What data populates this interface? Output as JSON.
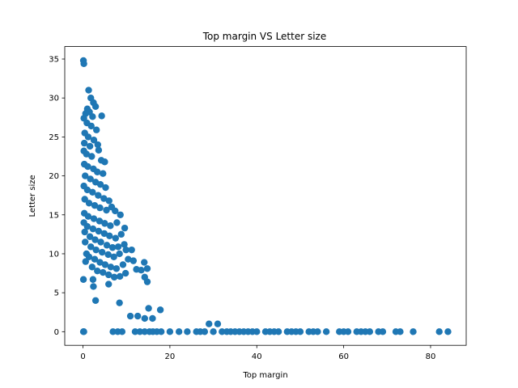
{
  "chart_data": {
    "type": "scatter",
    "title": "Top margin VS Letter size",
    "xlabel": "Top margin",
    "ylabel": "Letter size",
    "xlim": [
      -4.2,
      88.2
    ],
    "ylim": [
      -1.75,
      36.6
    ],
    "xticks": [
      0,
      20,
      40,
      60,
      80
    ],
    "yticks": [
      0,
      5,
      10,
      15,
      20,
      25,
      30,
      35
    ],
    "grid": false,
    "legend": "none",
    "color": "#1f77b4",
    "series": [
      {
        "points": [
          [
            0.1,
            34.8
          ],
          [
            0.2,
            34.4
          ],
          [
            1.3,
            31.0
          ],
          [
            1.8,
            30.0
          ],
          [
            2.4,
            29.4
          ],
          [
            1.0,
            28.6
          ],
          [
            0.6,
            28.0
          ],
          [
            0.2,
            27.4
          ],
          [
            1.5,
            28.2
          ],
          [
            2.2,
            27.6
          ],
          [
            2.9,
            28.9
          ],
          [
            4.3,
            27.7
          ],
          [
            0.9,
            26.8
          ],
          [
            1.9,
            26.4
          ],
          [
            3.1,
            25.9
          ],
          [
            0.4,
            25.5
          ],
          [
            1.2,
            25.0
          ],
          [
            2.5,
            24.6
          ],
          [
            0.3,
            24.2
          ],
          [
            1.6,
            23.8
          ],
          [
            3.4,
            24.0
          ],
          [
            0.2,
            23.2
          ],
          [
            0.8,
            22.8
          ],
          [
            2.0,
            22.5
          ],
          [
            3.6,
            23.3
          ],
          [
            4.2,
            22.0
          ],
          [
            5.0,
            21.8
          ],
          [
            0.3,
            21.5
          ],
          [
            1.1,
            21.2
          ],
          [
            2.4,
            20.9
          ],
          [
            3.3,
            20.5
          ],
          [
            4.6,
            20.3
          ],
          [
            0.5,
            20.0
          ],
          [
            1.7,
            19.6
          ],
          [
            2.9,
            19.2
          ],
          [
            4.0,
            18.9
          ],
          [
            5.2,
            18.5
          ],
          [
            0.2,
            18.7
          ],
          [
            1.0,
            18.2
          ],
          [
            2.2,
            17.9
          ],
          [
            3.5,
            17.5
          ],
          [
            4.8,
            17.1
          ],
          [
            6.0,
            16.8
          ],
          [
            0.4,
            17.0
          ],
          [
            1.4,
            16.5
          ],
          [
            2.7,
            16.2
          ],
          [
            3.9,
            15.9
          ],
          [
            5.4,
            15.6
          ],
          [
            6.6,
            16.0
          ],
          [
            7.4,
            15.5
          ],
          [
            0.3,
            15.2
          ],
          [
            1.2,
            14.8
          ],
          [
            2.5,
            14.5
          ],
          [
            3.8,
            14.2
          ],
          [
            5.0,
            13.9
          ],
          [
            6.3,
            13.6
          ],
          [
            7.8,
            14.0
          ],
          [
            8.6,
            15.0
          ],
          [
            0.2,
            14.0
          ],
          [
            1.0,
            13.5
          ],
          [
            2.3,
            13.2
          ],
          [
            3.6,
            12.9
          ],
          [
            4.9,
            12.6
          ],
          [
            6.1,
            12.3
          ],
          [
            7.5,
            12.0
          ],
          [
            8.8,
            12.5
          ],
          [
            9.6,
            13.3
          ],
          [
            0.4,
            12.8
          ],
          [
            1.6,
            12.2
          ],
          [
            2.8,
            11.8
          ],
          [
            4.1,
            11.5
          ],
          [
            5.5,
            11.1
          ],
          [
            6.8,
            10.8
          ],
          [
            8.1,
            10.9
          ],
          [
            9.5,
            11.2
          ],
          [
            0.5,
            11.5
          ],
          [
            1.8,
            10.9
          ],
          [
            3.0,
            10.5
          ],
          [
            4.4,
            10.2
          ],
          [
            5.8,
            9.9
          ],
          [
            7.1,
            9.6
          ],
          [
            8.4,
            10.0
          ],
          [
            9.9,
            10.5
          ],
          [
            11.2,
            10.5
          ],
          [
            12.3,
            8.0
          ],
          [
            13.4,
            7.9
          ],
          [
            14.1,
            8.9
          ],
          [
            14.8,
            8.1
          ],
          [
            0.8,
            10.0
          ],
          [
            0.6,
            9.0
          ],
          [
            1.4,
            9.6
          ],
          [
            2.7,
            9.3
          ],
          [
            3.9,
            8.9
          ],
          [
            5.1,
            8.6
          ],
          [
            6.4,
            8.3
          ],
          [
            7.7,
            8.1
          ],
          [
            9.2,
            8.6
          ],
          [
            10.4,
            9.3
          ],
          [
            11.6,
            9.1
          ],
          [
            2.1,
            8.3
          ],
          [
            3.3,
            7.8
          ],
          [
            4.6,
            7.6
          ],
          [
            5.9,
            7.3
          ],
          [
            7.2,
            7.0
          ],
          [
            8.5,
            7.1
          ],
          [
            9.8,
            7.5
          ],
          [
            14.2,
            7.0
          ],
          [
            14.8,
            6.4
          ],
          [
            0.1,
            6.7
          ],
          [
            2.3,
            6.7
          ],
          [
            2.4,
            5.8
          ],
          [
            5.9,
            6.1
          ],
          [
            2.9,
            4.0
          ],
          [
            8.4,
            3.7
          ],
          [
            10.9,
            2.0
          ],
          [
            12.6,
            2.0
          ],
          [
            14.2,
            1.7
          ],
          [
            15.1,
            3.0
          ],
          [
            16.0,
            1.7
          ],
          [
            17.8,
            2.8
          ],
          [
            0.1,
            0.0
          ],
          [
            0.2,
            0.0
          ],
          [
            6.9,
            0.0
          ],
          [
            8.0,
            0.0
          ],
          [
            9.0,
            0.0
          ],
          [
            12.0,
            0.0
          ],
          [
            13.1,
            0.0
          ],
          [
            14.2,
            0.0
          ],
          [
            15.3,
            0.0
          ],
          [
            16.1,
            0.0
          ],
          [
            17.0,
            0.0
          ],
          [
            18.0,
            0.0
          ],
          [
            20.0,
            0.0
          ],
          [
            22.1,
            0.0
          ],
          [
            24.0,
            0.0
          ],
          [
            26.1,
            0.0
          ],
          [
            27.0,
            0.0
          ],
          [
            28.0,
            0.0
          ],
          [
            29.0,
            1.0
          ],
          [
            30.0,
            0.0
          ],
          [
            31.0,
            1.0
          ],
          [
            32.0,
            0.0
          ],
          [
            33.1,
            0.0
          ],
          [
            34.0,
            0.0
          ],
          [
            35.0,
            0.0
          ],
          [
            36.0,
            0.0
          ],
          [
            37.0,
            0.0
          ],
          [
            38.0,
            0.0
          ],
          [
            39.0,
            0.0
          ],
          [
            40.0,
            0.0
          ],
          [
            42.0,
            0.0
          ],
          [
            43.0,
            0.0
          ],
          [
            44.0,
            0.0
          ],
          [
            45.0,
            0.0
          ],
          [
            47.0,
            0.0
          ],
          [
            48.0,
            0.0
          ],
          [
            49.0,
            0.0
          ],
          [
            50.0,
            0.0
          ],
          [
            52.0,
            0.0
          ],
          [
            53.0,
            0.0
          ],
          [
            54.0,
            0.0
          ],
          [
            56.0,
            0.0
          ],
          [
            59.0,
            0.0
          ],
          [
            60.0,
            0.0
          ],
          [
            61.0,
            0.0
          ],
          [
            63.0,
            0.0
          ],
          [
            64.0,
            0.0
          ],
          [
            65.0,
            0.0
          ],
          [
            66.0,
            0.0
          ],
          [
            68.0,
            0.0
          ],
          [
            69.0,
            0.0
          ],
          [
            72.0,
            0.0
          ],
          [
            73.0,
            0.0
          ],
          [
            76.0,
            0.0
          ],
          [
            82.0,
            0.0
          ],
          [
            84.0,
            0.0
          ]
        ]
      }
    ]
  }
}
